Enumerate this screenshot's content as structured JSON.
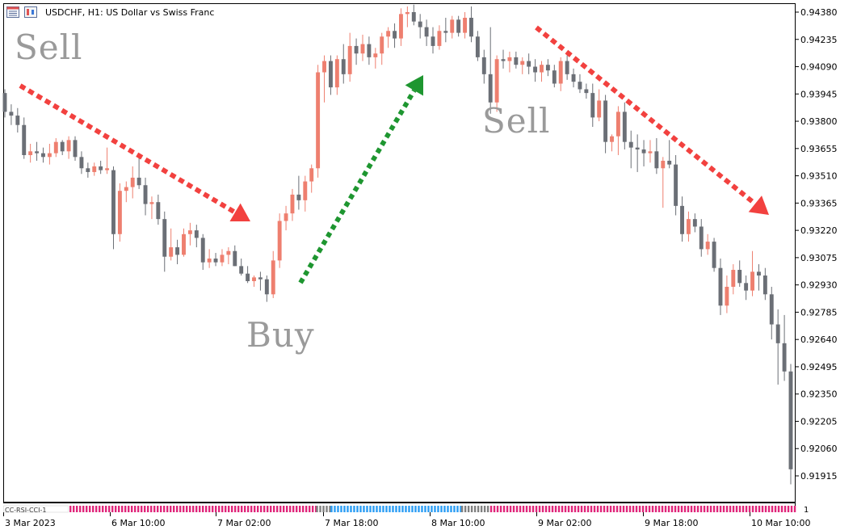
{
  "header": {
    "symbol_text": "USDCHF, H1:  US Dollar vs Swiss Franc",
    "icons": [
      "chart-window-icon",
      "timeframe-icon"
    ]
  },
  "annotations": {
    "sell_left": "Sell",
    "sell_right": "Sell",
    "buy": "Buy"
  },
  "indicator": {
    "label": "CC-RSI-CCI-1",
    "right_label": "1",
    "segments": [
      {
        "color": "#e0267a",
        "from": 0,
        "to": 0.34
      },
      {
        "color": "#808080",
        "from": 0.34,
        "to": 0.36
      },
      {
        "color": "#2a9df4",
        "from": 0.36,
        "to": 0.54
      },
      {
        "color": "#808080",
        "from": 0.54,
        "to": 0.58
      },
      {
        "color": "#e0267a",
        "from": 0.58,
        "to": 1.0
      }
    ]
  },
  "colors": {
    "bull": "#ee7f6f",
    "bear": "#6b6f76",
    "sell_arrow": "#f2413f",
    "buy_arrow": "#1e9630",
    "text": "#9a9a9a"
  },
  "chart_data": {
    "type": "candlestick",
    "symbol": "USDCHF",
    "timeframe": "H1",
    "ylim": [
      0.9185,
      0.9445
    ],
    "y_ticks": [
      "0.94380",
      "0.94235",
      "0.94090",
      "0.93945",
      "0.93800",
      "0.93655",
      "0.93510",
      "0.93365",
      "0.93220",
      "0.93075",
      "0.92930",
      "0.92785",
      "0.92640",
      "0.92495",
      "0.92350",
      "0.92205",
      "0.92060",
      "0.91915"
    ],
    "x_labels": [
      "3 Mar 2023",
      "6 Mar 10:00",
      "7 Mar 02:00",
      "7 Mar 18:00",
      "8 Mar 10:00",
      "9 Mar 02:00",
      "9 Mar 18:00",
      "10 Mar 10:00"
    ],
    "candles": [
      [
        0.9395,
        0.9397,
        0.9382,
        0.9385
      ],
      [
        0.9385,
        0.9389,
        0.9378,
        0.9383
      ],
      [
        0.9383,
        0.9387,
        0.9374,
        0.9378
      ],
      [
        0.9378,
        0.9382,
        0.936,
        0.9362
      ],
      [
        0.9362,
        0.9368,
        0.9358,
        0.9364
      ],
      [
        0.9364,
        0.9369,
        0.9359,
        0.9363
      ],
      [
        0.9363,
        0.9366,
        0.9358,
        0.9361
      ],
      [
        0.9361,
        0.9368,
        0.9357,
        0.9363
      ],
      [
        0.9363,
        0.9371,
        0.9361,
        0.9369
      ],
      [
        0.9369,
        0.937,
        0.9362,
        0.9364
      ],
      [
        0.9364,
        0.9372,
        0.936,
        0.937
      ],
      [
        0.937,
        0.9372,
        0.9359,
        0.9361
      ],
      [
        0.9361,
        0.9364,
        0.9352,
        0.9355
      ],
      [
        0.9355,
        0.9358,
        0.935,
        0.9353
      ],
      [
        0.9353,
        0.9358,
        0.9351,
        0.9356
      ],
      [
        0.9356,
        0.9359,
        0.9352,
        0.9354
      ],
      [
        0.9354,
        0.9366,
        0.9352,
        0.9355
      ],
      [
        0.9354,
        0.9356,
        0.9312,
        0.932
      ],
      [
        0.932,
        0.9347,
        0.9316,
        0.9343
      ],
      [
        0.9343,
        0.9348,
        0.9337,
        0.9345
      ],
      [
        0.9345,
        0.9356,
        0.9339,
        0.935
      ],
      [
        0.935,
        0.9363,
        0.9344,
        0.9346
      ],
      [
        0.9346,
        0.935,
        0.933,
        0.9336
      ],
      [
        0.9336,
        0.934,
        0.9328,
        0.9337
      ],
      [
        0.9337,
        0.9341,
        0.9325,
        0.9328
      ],
      [
        0.9328,
        0.9332,
        0.93,
        0.9308
      ],
      [
        0.9308,
        0.9323,
        0.9306,
        0.9313
      ],
      [
        0.9313,
        0.9317,
        0.9304,
        0.9309
      ],
      [
        0.9309,
        0.9323,
        0.9308,
        0.932
      ],
      [
        0.932,
        0.9326,
        0.9314,
        0.9322
      ],
      [
        0.9322,
        0.9325,
        0.9313,
        0.9318
      ],
      [
        0.9318,
        0.932,
        0.9301,
        0.9305
      ],
      [
        0.9305,
        0.9312,
        0.9302,
        0.9307
      ],
      [
        0.9307,
        0.931,
        0.9303,
        0.9305
      ],
      [
        0.9305,
        0.9312,
        0.9303,
        0.9309
      ],
      [
        0.9309,
        0.9313,
        0.9304,
        0.9311
      ],
      [
        0.9311,
        0.9314,
        0.9303,
        0.9303
      ],
      [
        0.9303,
        0.9307,
        0.9298,
        0.9299
      ],
      [
        0.9299,
        0.9303,
        0.9294,
        0.9295
      ],
      [
        0.9295,
        0.9298,
        0.9292,
        0.9297
      ],
      [
        0.9297,
        0.93,
        0.929,
        0.9296
      ],
      [
        0.9296,
        0.9298,
        0.9284,
        0.9288
      ],
      [
        0.9288,
        0.9311,
        0.9286,
        0.9306
      ],
      [
        0.9306,
        0.9331,
        0.9302,
        0.9327
      ],
      [
        0.9327,
        0.9335,
        0.9322,
        0.9331
      ],
      [
        0.9331,
        0.9344,
        0.9327,
        0.9341
      ],
      [
        0.9341,
        0.9351,
        0.9333,
        0.9338
      ],
      [
        0.9338,
        0.9351,
        0.9332,
        0.9348
      ],
      [
        0.9348,
        0.9357,
        0.9342,
        0.9355
      ],
      [
        0.9355,
        0.941,
        0.935,
        0.9406
      ],
      [
        0.9406,
        0.9415,
        0.939,
        0.9412
      ],
      [
        0.9412,
        0.9415,
        0.9394,
        0.9398
      ],
      [
        0.9398,
        0.9415,
        0.9394,
        0.9413
      ],
      [
        0.9413,
        0.9421,
        0.94,
        0.9405
      ],
      [
        0.9405,
        0.9427,
        0.9401,
        0.942
      ],
      [
        0.942,
        0.9424,
        0.941,
        0.9416
      ],
      [
        0.9416,
        0.9426,
        0.9412,
        0.9421
      ],
      [
        0.9421,
        0.9425,
        0.941,
        0.9414
      ],
      [
        0.9414,
        0.9419,
        0.9408,
        0.9416
      ],
      [
        0.9416,
        0.9427,
        0.941,
        0.9425
      ],
      [
        0.9425,
        0.943,
        0.9419,
        0.9428
      ],
      [
        0.9428,
        0.9432,
        0.9419,
        0.9424
      ],
      [
        0.9424,
        0.944,
        0.942,
        0.9437
      ],
      [
        0.9437,
        0.9441,
        0.943,
        0.9438
      ],
      [
        0.9438,
        0.9442,
        0.9431,
        0.9433
      ],
      [
        0.9433,
        0.9437,
        0.9424,
        0.943
      ],
      [
        0.943,
        0.9434,
        0.942,
        0.9425
      ],
      [
        0.9425,
        0.943,
        0.9416,
        0.942
      ],
      [
        0.942,
        0.9431,
        0.9418,
        0.9428
      ],
      [
        0.9428,
        0.9435,
        0.9422,
        0.9427
      ],
      [
        0.9427,
        0.9436,
        0.9424,
        0.9434
      ],
      [
        0.9434,
        0.9436,
        0.9425,
        0.9427
      ],
      [
        0.9427,
        0.9438,
        0.9424,
        0.9435
      ],
      [
        0.9435,
        0.9441,
        0.9422,
        0.9425
      ],
      [
        0.9425,
        0.9428,
        0.9412,
        0.9414
      ],
      [
        0.9414,
        0.9418,
        0.94,
        0.9405
      ],
      [
        0.9405,
        0.943,
        0.9384,
        0.939
      ],
      [
        0.939,
        0.9415,
        0.9385,
        0.9413
      ],
      [
        0.9413,
        0.9418,
        0.9408,
        0.9412
      ],
      [
        0.9412,
        0.9417,
        0.9406,
        0.9414
      ],
      [
        0.9414,
        0.9417,
        0.9408,
        0.941
      ],
      [
        0.941,
        0.9414,
        0.9405,
        0.9412
      ],
      [
        0.9412,
        0.9416,
        0.9405,
        0.9409
      ],
      [
        0.9409,
        0.9413,
        0.9401,
        0.9406
      ],
      [
        0.9406,
        0.9412,
        0.9401,
        0.941
      ],
      [
        0.941,
        0.9413,
        0.9404,
        0.9407
      ],
      [
        0.9407,
        0.941,
        0.9398,
        0.94
      ],
      [
        0.94,
        0.9414,
        0.9396,
        0.9412
      ],
      [
        0.9412,
        0.9415,
        0.9402,
        0.9405
      ],
      [
        0.9405,
        0.9408,
        0.9398,
        0.9401
      ],
      [
        0.9401,
        0.9405,
        0.9395,
        0.9397
      ],
      [
        0.9397,
        0.94,
        0.9392,
        0.9395
      ],
      [
        0.9395,
        0.94,
        0.9377,
        0.9382
      ],
      [
        0.9382,
        0.9397,
        0.938,
        0.9391
      ],
      [
        0.9391,
        0.9394,
        0.9363,
        0.9369
      ],
      [
        0.9369,
        0.9373,
        0.9364,
        0.9372
      ],
      [
        0.9372,
        0.9388,
        0.9362,
        0.9385
      ],
      [
        0.9385,
        0.939,
        0.9365,
        0.9369
      ],
      [
        0.9369,
        0.9375,
        0.9355,
        0.9366
      ],
      [
        0.9366,
        0.9373,
        0.9353,
        0.9365
      ],
      [
        0.9365,
        0.937,
        0.9356,
        0.9363
      ],
      [
        0.9363,
        0.937,
        0.9358,
        0.9364
      ],
      [
        0.9364,
        0.9371,
        0.9352,
        0.9355
      ],
      [
        0.9355,
        0.9361,
        0.9334,
        0.9359
      ],
      [
        0.9359,
        0.937,
        0.9355,
        0.9357
      ],
      [
        0.9357,
        0.9362,
        0.933,
        0.9335
      ],
      [
        0.9335,
        0.934,
        0.9316,
        0.932
      ],
      [
        0.932,
        0.9332,
        0.9316,
        0.9328
      ],
      [
        0.9328,
        0.9331,
        0.9321,
        0.9324
      ],
      [
        0.9324,
        0.9328,
        0.9308,
        0.9312
      ],
      [
        0.9312,
        0.932,
        0.9309,
        0.9316
      ],
      [
        0.9316,
        0.9318,
        0.93,
        0.9302
      ],
      [
        0.9302,
        0.9307,
        0.9277,
        0.9282
      ],
      [
        0.9282,
        0.9298,
        0.9278,
        0.9292
      ],
      [
        0.9292,
        0.9304,
        0.9288,
        0.9301
      ],
      [
        0.9301,
        0.9306,
        0.9292,
        0.9294
      ],
      [
        0.9294,
        0.9298,
        0.9285,
        0.929
      ],
      [
        0.929,
        0.9311,
        0.9287,
        0.93
      ],
      [
        0.93,
        0.9304,
        0.929,
        0.9298
      ],
      [
        0.9298,
        0.9302,
        0.9285,
        0.9288
      ],
      [
        0.9288,
        0.9292,
        0.9264,
        0.9272
      ],
      [
        0.9272,
        0.928,
        0.924,
        0.9262
      ],
      [
        0.9262,
        0.9277,
        0.9242,
        0.9247
      ],
      [
        0.9247,
        0.9251,
        0.9187,
        0.9195
      ]
    ]
  }
}
